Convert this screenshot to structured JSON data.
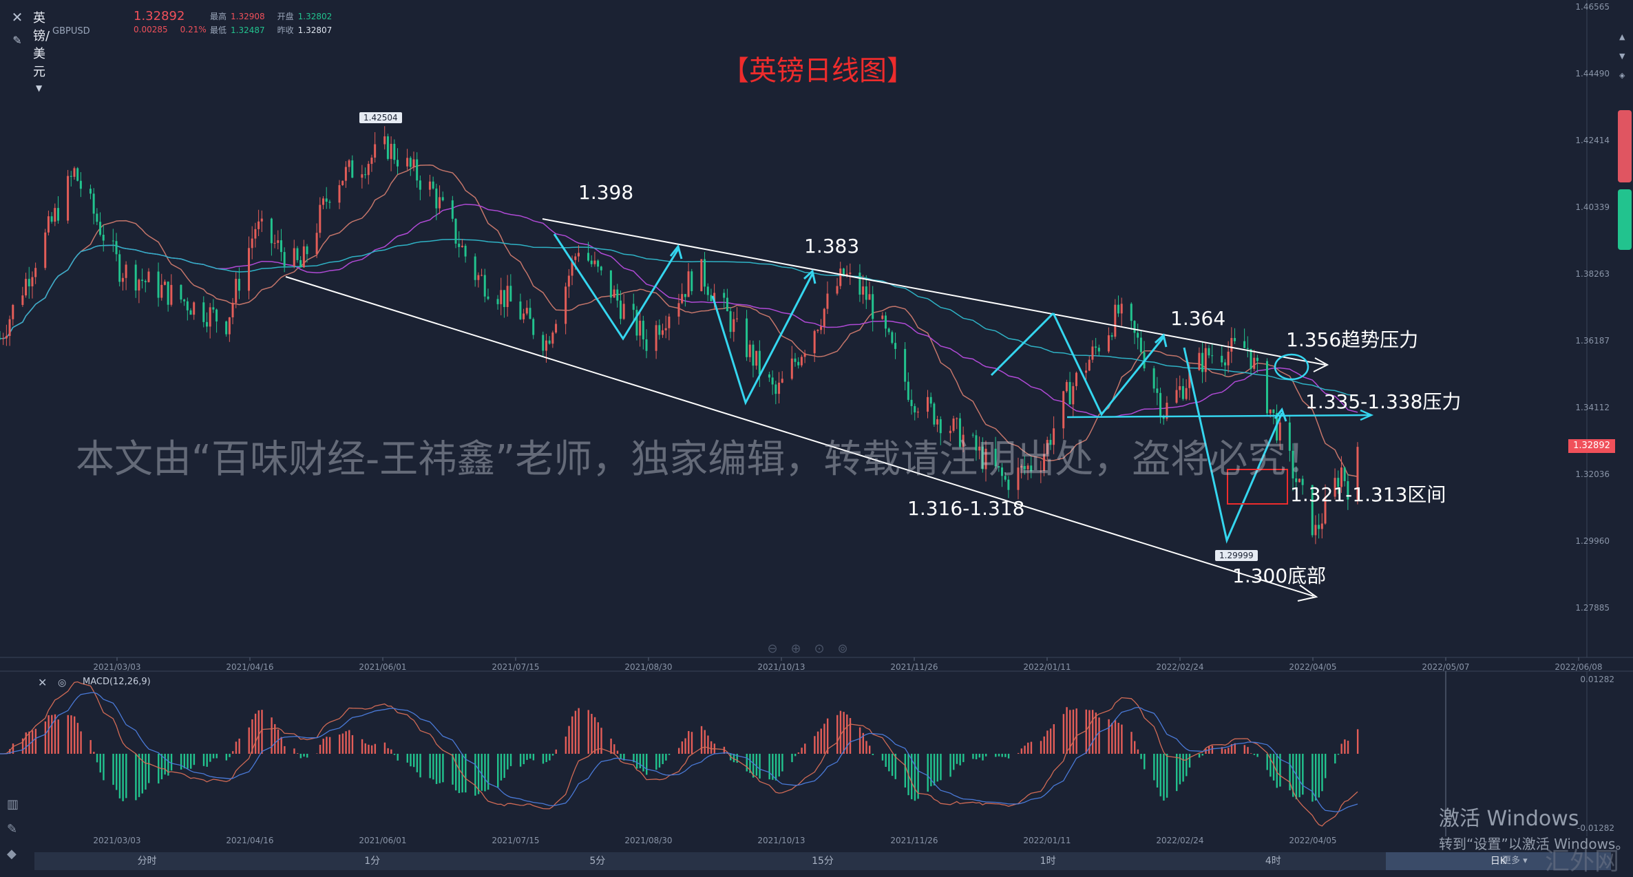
{
  "header": {
    "symbol_name": "英镑/美元",
    "symbol_code": "GBPUSD",
    "last_price": "1.32892",
    "change": "0.00285",
    "change_pct": "0.21%",
    "high_label": "最高",
    "high_value": "1.32908",
    "open_label": "开盘",
    "open_value": "1.32802",
    "low_label": "最低",
    "low_value": "1.32487",
    "prev_close_label": "昨收",
    "prev_close_value": "1.32807"
  },
  "chart_title": "【英镑日线图】",
  "watermark": "本文由“百味财经-王祎鑫”老师，独家编辑，转载请注明出处，盗将必究！",
  "annotations": [
    {
      "text": "1.42504"
    },
    {
      "text": "1.398"
    },
    {
      "text": "1.383"
    },
    {
      "text": "1.364"
    },
    {
      "text": "1.356趋势压力"
    },
    {
      "text": "1.335-1.338压力"
    },
    {
      "text": "1.316-1.318"
    },
    {
      "text": "1.321-1.313区间"
    },
    {
      "text": "1.29999"
    },
    {
      "text": "1.300底部"
    }
  ],
  "price_axis": [
    "1.46565",
    "1.44490",
    "1.42414",
    "1.40339",
    "1.38263",
    "1.36187",
    "1.34112",
    "1.32036",
    "1.29960",
    "1.27885"
  ],
  "current_price_tag": "1.32892",
  "date_axis": [
    "2021/03/03",
    "2021/04/16",
    "2021/06/01",
    "2021/07/15",
    "2021/08/30",
    "2021/10/13",
    "2021/11/26",
    "2022/01/11",
    "2022/02/24",
    "2022/04/05",
    "2022/05/07",
    "2022/06/08"
  ],
  "macd": {
    "label": "MACD(12,26,9)",
    "axis": [
      "0.01282",
      "-0.01282"
    ],
    "dates": [
      "2021/03/03",
      "2021/04/16",
      "2021/06/01",
      "2021/07/15",
      "2021/08/30",
      "2021/10/13",
      "2021/11/26",
      "2022/01/11",
      "2022/02/24",
      "2022/04/05"
    ]
  },
  "timeframes": [
    "分时",
    "1分",
    "5分",
    "15分",
    "1时",
    "4时",
    "日K"
  ],
  "active_timeframe": "日K",
  "more_label": "更多",
  "windows_activation": {
    "line1": "激活 Windows",
    "line2": "转到“设置”以激活 Windows。"
  },
  "site_watermark": "汇外网",
  "colors": {
    "up": "#e35d58",
    "down": "#22c38e",
    "accent_red": "#ee2c2c",
    "cyan": "#35d6ef",
    "bg": "#1b2233"
  },
  "chart_data": {
    "type": "candlestick",
    "title": "【英镑日线图】",
    "symbol": "GBPUSD",
    "ylim": [
      1.265,
      1.467
    ],
    "x_range": [
      "2021/02/01",
      "2022/06/08"
    ],
    "anchor_closes": [
      [
        "2021/02/01",
        1.363
      ],
      [
        "2021/02/24",
        1.415
      ],
      [
        "2021/03/10",
        1.385
      ],
      [
        "2021/04/12",
        1.368
      ],
      [
        "2021/04/21",
        1.398
      ],
      [
        "2021/05/05",
        1.385
      ],
      [
        "2021/05/15",
        1.412
      ],
      [
        "2021/06/01",
        1.423
      ],
      [
        "2021/06/15",
        1.409
      ],
      [
        "2021/06/28",
        1.383
      ],
      [
        "2021/07/08",
        1.375
      ],
      [
        "2021/07/20",
        1.362
      ],
      [
        "2021/07/30",
        1.392
      ],
      [
        "2021/08/20",
        1.362
      ],
      [
        "2021/09/05",
        1.385
      ],
      [
        "2021/09/29",
        1.345
      ],
      [
        "2021/10/20",
        1.383
      ],
      [
        "2021/10/28",
        1.375
      ],
      [
        "2021/11/10",
        1.345
      ],
      [
        "2021/11/26",
        1.332
      ],
      [
        "2021/12/09",
        1.318
      ],
      [
        "2021/12/20",
        1.325
      ],
      [
        "2021/12/28",
        1.345
      ],
      [
        "2022/01/13",
        1.371
      ],
      [
        "2022/01/20",
        1.36
      ],
      [
        "2022/01/27",
        1.34
      ],
      [
        "2022/02/07",
        1.355
      ],
      [
        "2022/02/10",
        1.358
      ],
      [
        "2022/02/22",
        1.36
      ],
      [
        "2022/03/03",
        1.335
      ],
      [
        "2022/03/15",
        1.302
      ],
      [
        "2022/03/23",
        1.322
      ],
      [
        "2022/03/28",
        1.3089
      ]
    ],
    "last_close": 1.32892,
    "moving_averages": [
      {
        "name": "MA-short",
        "color": "#c4756a"
      },
      {
        "name": "MA-mid",
        "color": "#b04ad6"
      },
      {
        "name": "MA-long",
        "color": "#2fb3c6"
      }
    ]
  }
}
